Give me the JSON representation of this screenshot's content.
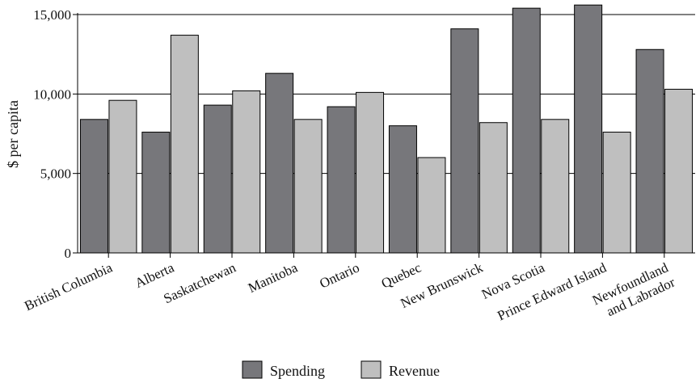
{
  "chart_data": {
    "type": "bar",
    "ylabel": "$ per capita",
    "xlabel": "",
    "ylim": [
      0,
      15000
    ],
    "yticks": [
      0,
      5000,
      10000,
      15000
    ],
    "ytick_labels": [
      "0",
      "5,000",
      "10,000",
      "15,000"
    ],
    "grid": "horizontal",
    "legend_position": "bottom",
    "categories": [
      [
        "British Columbia"
      ],
      [
        "Alberta"
      ],
      [
        "Saskatchewan"
      ],
      [
        "Manitoba"
      ],
      [
        "Ontario"
      ],
      [
        "Quebec"
      ],
      [
        "New Brunswick"
      ],
      [
        "Nova Scotia"
      ],
      [
        "Prince Edward Island"
      ],
      [
        "Newfoundland",
        "and Labrador"
      ]
    ],
    "series": [
      {
        "name": "Spending",
        "color": "#77777b",
        "values": [
          8400,
          7600,
          9300,
          11300,
          9200,
          8000,
          14100,
          15400,
          15600,
          12800
        ]
      },
      {
        "name": "Revenue",
        "color": "#bfbfbf",
        "values": [
          9600,
          13700,
          10200,
          8400,
          10100,
          6000,
          8200,
          8400,
          7600,
          10300
        ]
      }
    ]
  }
}
